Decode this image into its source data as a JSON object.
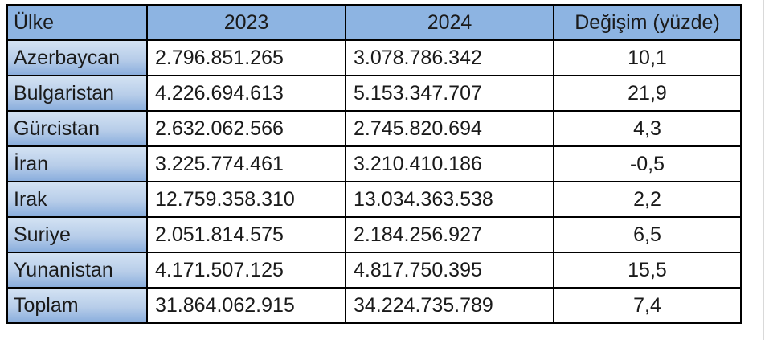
{
  "colors": {
    "header_bg": "#8DB4E2",
    "row_header_gradient_top": "#D3E2F3",
    "row_header_gradient_bottom": "#8AAEDD",
    "border": "#000000",
    "text": "#1a1a1a"
  },
  "table": {
    "headers": {
      "country": "Ülke",
      "y2023": "2023",
      "y2024": "2024",
      "change": "Değişim (yüzde)"
    },
    "rows": [
      {
        "country": "Azerbaycan",
        "y2023": "2.796.851.265",
        "y2024": "3.078.786.342",
        "change": "10,1"
      },
      {
        "country": "Bulgaristan",
        "y2023": "4.226.694.613",
        "y2024": "5.153.347.707",
        "change": "21,9"
      },
      {
        "country": "Gürcistan",
        "y2023": "2.632.062.566",
        "y2024": "2.745.820.694",
        "change": "4,3"
      },
      {
        "country": "İran",
        "y2023": "3.225.774.461",
        "y2024": "3.210.410.186",
        "change": "-0,5"
      },
      {
        "country": "Irak",
        "y2023": "12.759.358.310",
        "y2024": "13.034.363.538",
        "change": "2,2"
      },
      {
        "country": "Suriye",
        "y2023": "2.051.814.575",
        "y2024": "2.184.256.927",
        "change": "6,5"
      },
      {
        "country": "Yunanistan",
        "y2023": "4.171.507.125",
        "y2024": "4.817.750.395",
        "change": "15,5"
      },
      {
        "country": "Toplam",
        "y2023": "31.864.062.915",
        "y2024": "34.224.735.789",
        "change": "7,4"
      }
    ]
  },
  "chart_data": {
    "type": "table",
    "title": "",
    "columns": [
      "Ülke",
      "2023",
      "2024",
      "Değişim (yüzde)"
    ],
    "rows": [
      [
        "Azerbaycan",
        2796851265,
        3078786342,
        10.1
      ],
      [
        "Bulgaristan",
        4226694613,
        5153347707,
        21.9
      ],
      [
        "Gürcistan",
        2632062566,
        2745820694,
        4.3
      ],
      [
        "İran",
        3225774461,
        3210410186,
        -0.5
      ],
      [
        "Irak",
        12759358310,
        13034363538,
        2.2
      ],
      [
        "Suriye",
        2051814575,
        2184256927,
        6.5
      ],
      [
        "Yunanistan",
        4171507125,
        4817750395,
        15.5
      ],
      [
        "Toplam",
        31864062915,
        34224735789,
        7.4
      ]
    ],
    "notes": "Number formatting uses Turkish locale: dots as thousands separators, comma as decimal separator"
  }
}
